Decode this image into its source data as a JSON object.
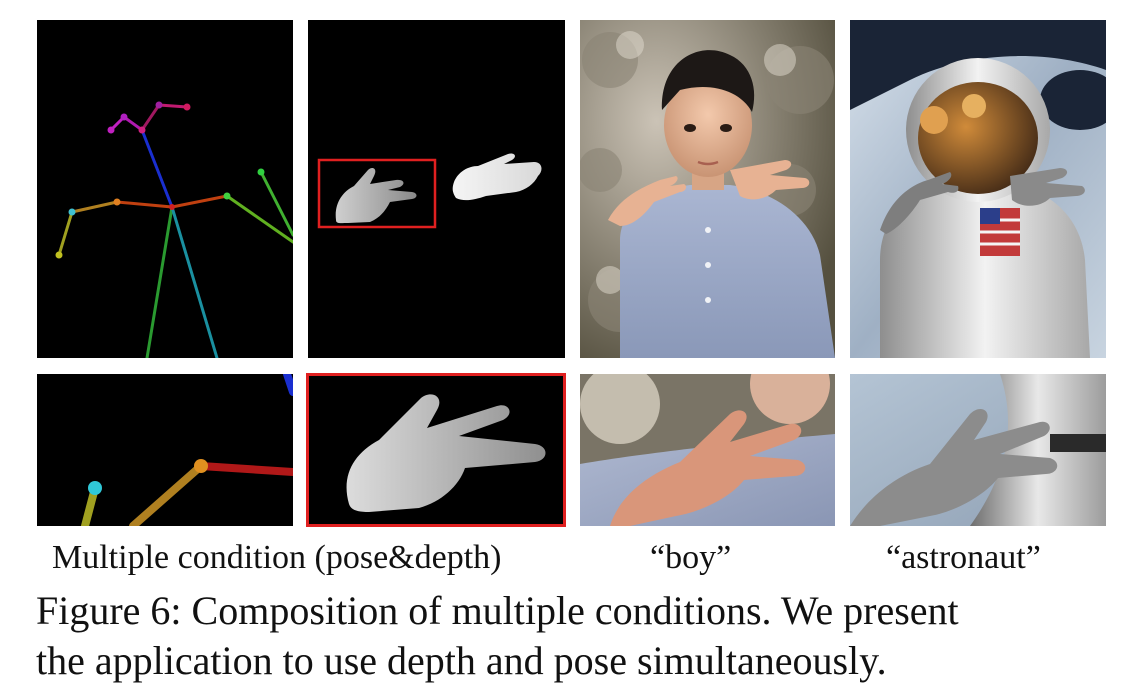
{
  "labels": {
    "conditions": "Multiple condition (pose&depth)",
    "boy": "“boy”",
    "astronaut": "“astronaut”"
  },
  "caption": {
    "line1": "Figure 6: Composition of multiple conditions. We present",
    "line2": "the application to use depth and pose simultaneously."
  },
  "colors": {
    "highlight_box": "#e02020",
    "background": "#000000"
  }
}
